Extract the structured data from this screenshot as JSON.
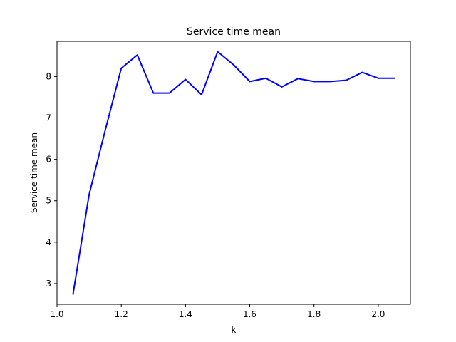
{
  "chart_data": {
    "type": "line",
    "title": "Service time mean",
    "xlabel": "k",
    "ylabel": "Service time mean",
    "xlim": [
      1.0,
      2.1
    ],
    "ylim": [
      2.5,
      8.85
    ],
    "xticks": [
      1.0,
      1.2,
      1.4,
      1.6,
      1.8,
      2.0
    ],
    "xtick_labels": [
      "1.0",
      "1.2",
      "1.4",
      "1.6",
      "1.8",
      "2.0"
    ],
    "yticks": [
      3,
      4,
      5,
      6,
      7,
      8
    ],
    "ytick_labels": [
      "3",
      "4",
      "5",
      "6",
      "7",
      "8"
    ],
    "grid": false,
    "legend": "none",
    "series": [
      {
        "color": "#0000ff",
        "x": [
          1.05,
          1.1,
          1.15,
          1.2,
          1.25,
          1.3,
          1.35,
          1.4,
          1.45,
          1.5,
          1.55,
          1.6,
          1.65,
          1.7,
          1.75,
          1.8,
          1.85,
          1.9,
          1.95,
          2.0,
          2.05
        ],
        "y": [
          2.75,
          5.15,
          6.7,
          8.2,
          8.52,
          7.6,
          7.6,
          7.93,
          7.56,
          8.6,
          8.28,
          7.88,
          7.96,
          7.75,
          7.95,
          7.88,
          7.88,
          7.91,
          8.1,
          7.96,
          7.96
        ]
      }
    ]
  }
}
